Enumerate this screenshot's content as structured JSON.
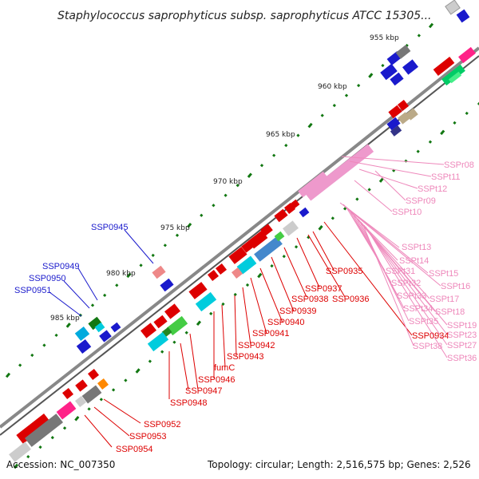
{
  "title": "Staphylococcus saprophyticus subsp. saprophyticus ATCC 15305...",
  "kbp_labels": [
    "955 kbp",
    "960 kbp",
    "965 kbp",
    "970 kbp",
    "975 kbp",
    "980 kbp",
    "985 kbp"
  ],
  "blue_labels": [
    "SSP0945",
    "SSP0949",
    "SSP0950",
    "SSP0951"
  ],
  "red_labels": [
    "SSP0935",
    "SSP0937",
    "SSP0938",
    "SSP0936",
    "SSP0939",
    "SSP0940",
    "SSP0941",
    "SSP0942",
    "SSP0943",
    "fumC",
    "SSP0946",
    "SSP0947",
    "SSP0948",
    "SSP0934",
    "SSP0952",
    "SSP0953",
    "SSP0954"
  ],
  "pink_labels": [
    "SSPr08",
    "SSPt11",
    "SSPt12",
    "SSPr09",
    "SSPt10",
    "SSPt13",
    "SSPt14",
    "SSPt15",
    "SSPt31",
    "SSPt16",
    "SSPt32",
    "SSPt17",
    "SSPt33",
    "SSPt18",
    "SSPt34",
    "SSPt19",
    "SSPt35",
    "SSPt23",
    "SSPt38",
    "SSPt27",
    "SSPt36"
  ],
  "footer": {
    "accession": "Accession: NC_007350",
    "topology": "Topology: circular; Length: 2,516,575 bp; Genes: 2,526"
  },
  "colors": {
    "blue": "#1a1acc",
    "red": "#dd0000",
    "pink": "#ee88bb",
    "backbone": "#777777"
  }
}
